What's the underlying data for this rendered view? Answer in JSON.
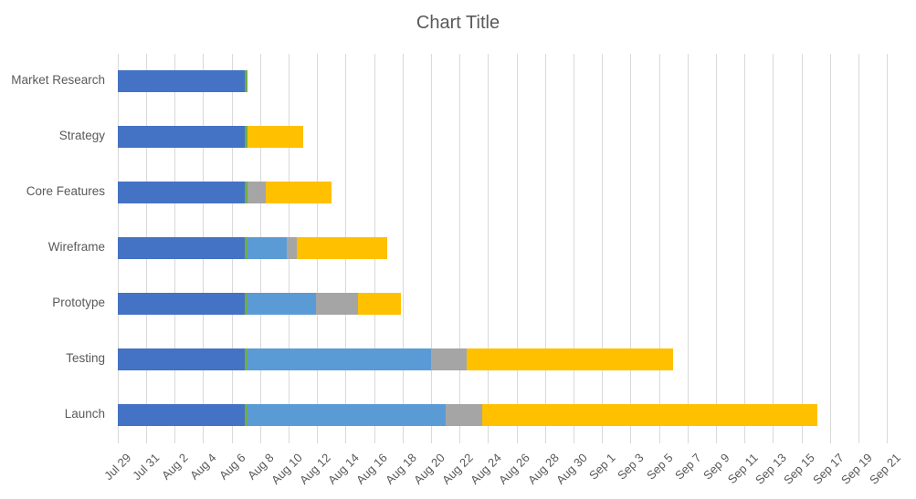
{
  "chart_data": {
    "type": "bar",
    "variant": "horizontal-stacked-gantt",
    "title": "Chart Title",
    "legend": "none",
    "grid": "vertical-only",
    "categories": [
      "Market Research",
      "Strategy",
      "Core Features",
      "Wireframe",
      "Prototype",
      "Testing",
      "Launch"
    ],
    "x_axis": {
      "unit": "date",
      "start_label": "Jul 29",
      "end_label": "Sep 21",
      "xlim_days": [
        0,
        54
      ],
      "tick_step_days": 2,
      "tick_labels": [
        "Jul 29",
        "Jul 31",
        "Aug 2",
        "Aug 4",
        "Aug 6",
        "Aug 8",
        "Aug 10",
        "Aug 12",
        "Aug 14",
        "Aug 16",
        "Aug 18",
        "Aug 20",
        "Aug 22",
        "Aug 24",
        "Aug 26",
        "Aug 28",
        "Aug 30",
        "Sep 1",
        "Sep 3",
        "Sep 5",
        "Sep 7",
        "Sep 9",
        "Sep 11",
        "Sep 13",
        "Sep 15",
        "Sep 17",
        "Sep 19",
        "Sep 21"
      ],
      "tick_days": [
        0,
        2,
        4,
        6,
        8,
        10,
        12,
        14,
        16,
        18,
        20,
        22,
        24,
        26,
        28,
        30,
        32,
        34,
        36,
        38,
        40,
        42,
        44,
        46,
        48,
        50,
        52,
        54
      ]
    },
    "series": [
      {
        "name": "segment-blue",
        "color": "#4472C4",
        "values": [
          8.9,
          8.9,
          8.9,
          8.9,
          8.9,
          8.9,
          8.9
        ]
      },
      {
        "name": "segment-green",
        "color": "#70AD47",
        "values": [
          0.2,
          0.2,
          0.2,
          0.2,
          0.2,
          0.2,
          0.2
        ]
      },
      {
        "name": "segment-light-blue",
        "color": "#5B9BD5",
        "values": [
          0,
          0,
          0,
          2.8,
          4.8,
          12.9,
          13.9
        ]
      },
      {
        "name": "segment-gray",
        "color": "#A5A5A5",
        "values": [
          0,
          0,
          1.3,
          0.7,
          3.0,
          2.5,
          2.6
        ]
      },
      {
        "name": "segment-yellow",
        "color": "#FFC000",
        "values": [
          0,
          3.9,
          4.6,
          6.3,
          3.0,
          14.5,
          23.5
        ]
      }
    ],
    "bar_totals_days": [
      9.1,
      13.0,
      15.0,
      18.9,
      19.9,
      39.0,
      49.1
    ]
  },
  "styles": {
    "title_color": "#595959",
    "axis_label_color": "#595959",
    "gridline_color": "#D9D9D9",
    "background_color": "#FFFFFF"
  }
}
